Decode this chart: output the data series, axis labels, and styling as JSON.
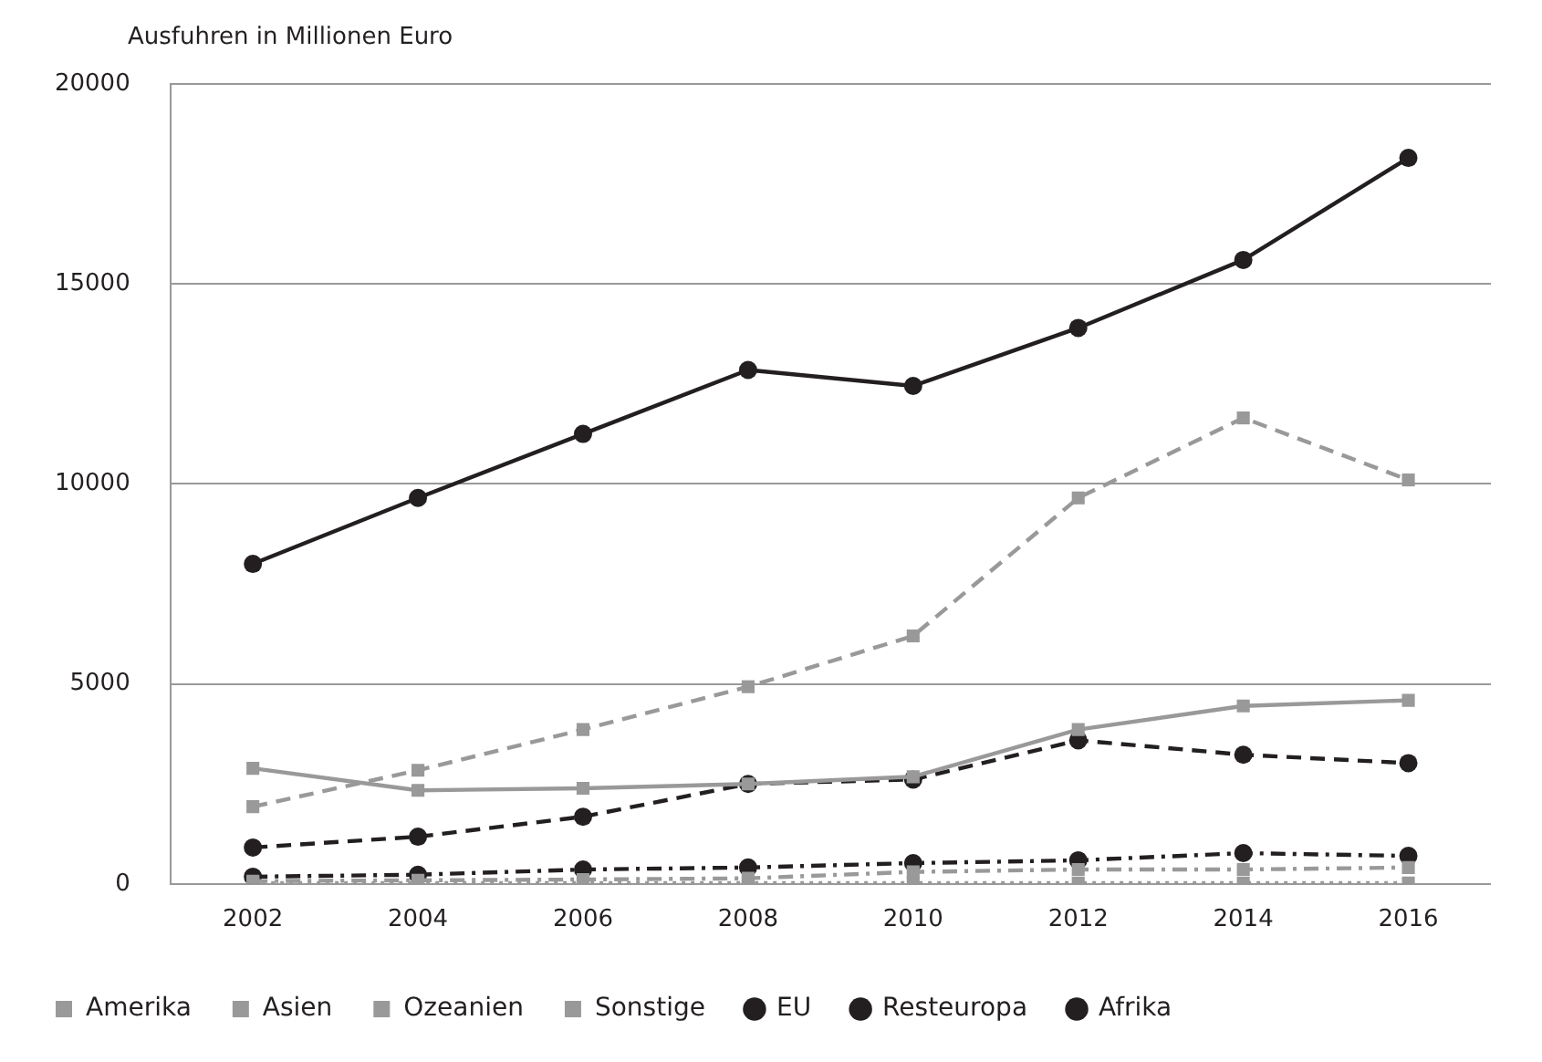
{
  "chart_data": {
    "type": "line",
    "ylabel": "Ausfuhren in Millionen Euro",
    "categories": [
      "2002",
      "2004",
      "2006",
      "2008",
      "2010",
      "2012",
      "2014",
      "2016"
    ],
    "series": [
      {
        "name": "EU",
        "color": "#231f20",
        "marker": "circle",
        "line_style": "solid",
        "values": [
          8000,
          9650,
          11250,
          12850,
          12450,
          13900,
          15600,
          18150
        ]
      },
      {
        "name": "Resteuropa",
        "color": "#231f20",
        "marker": "circle",
        "line_style": "dashed",
        "values": [
          910,
          1180,
          1680,
          2500,
          2610,
          3590,
          3230,
          3020
        ]
      },
      {
        "name": "Afrika",
        "color": "#231f20",
        "marker": "circle",
        "line_style": "dashdot",
        "values": [
          180,
          230,
          360,
          410,
          520,
          590,
          770,
          700
        ]
      },
      {
        "name": "Amerika",
        "color": "#999999",
        "marker": "square",
        "line_style": "solid",
        "values": [
          2890,
          2340,
          2390,
          2500,
          2680,
          3860,
          4450,
          4590
        ]
      },
      {
        "name": "Asien",
        "color": "#999999",
        "marker": "square",
        "line_style": "dashed",
        "values": [
          1930,
          2840,
          3860,
          4930,
          6200,
          9650,
          11650,
          10100
        ]
      },
      {
        "name": "Ozeanien",
        "color": "#999999",
        "marker": "square",
        "line_style": "dashdot",
        "values": [
          70,
          90,
          110,
          140,
          300,
          360,
          360,
          410
        ]
      },
      {
        "name": "Sonstige",
        "color": "#999999",
        "marker": "square",
        "line_style": "dotted",
        "values": [
          20,
          20,
          20,
          20,
          20,
          20,
          20,
          20
        ]
      }
    ],
    "ylim": [
      0,
      20000
    ],
    "yticks": [
      0,
      5000,
      10000,
      15000,
      20000
    ],
    "grid": "y",
    "legend": "bottom"
  }
}
